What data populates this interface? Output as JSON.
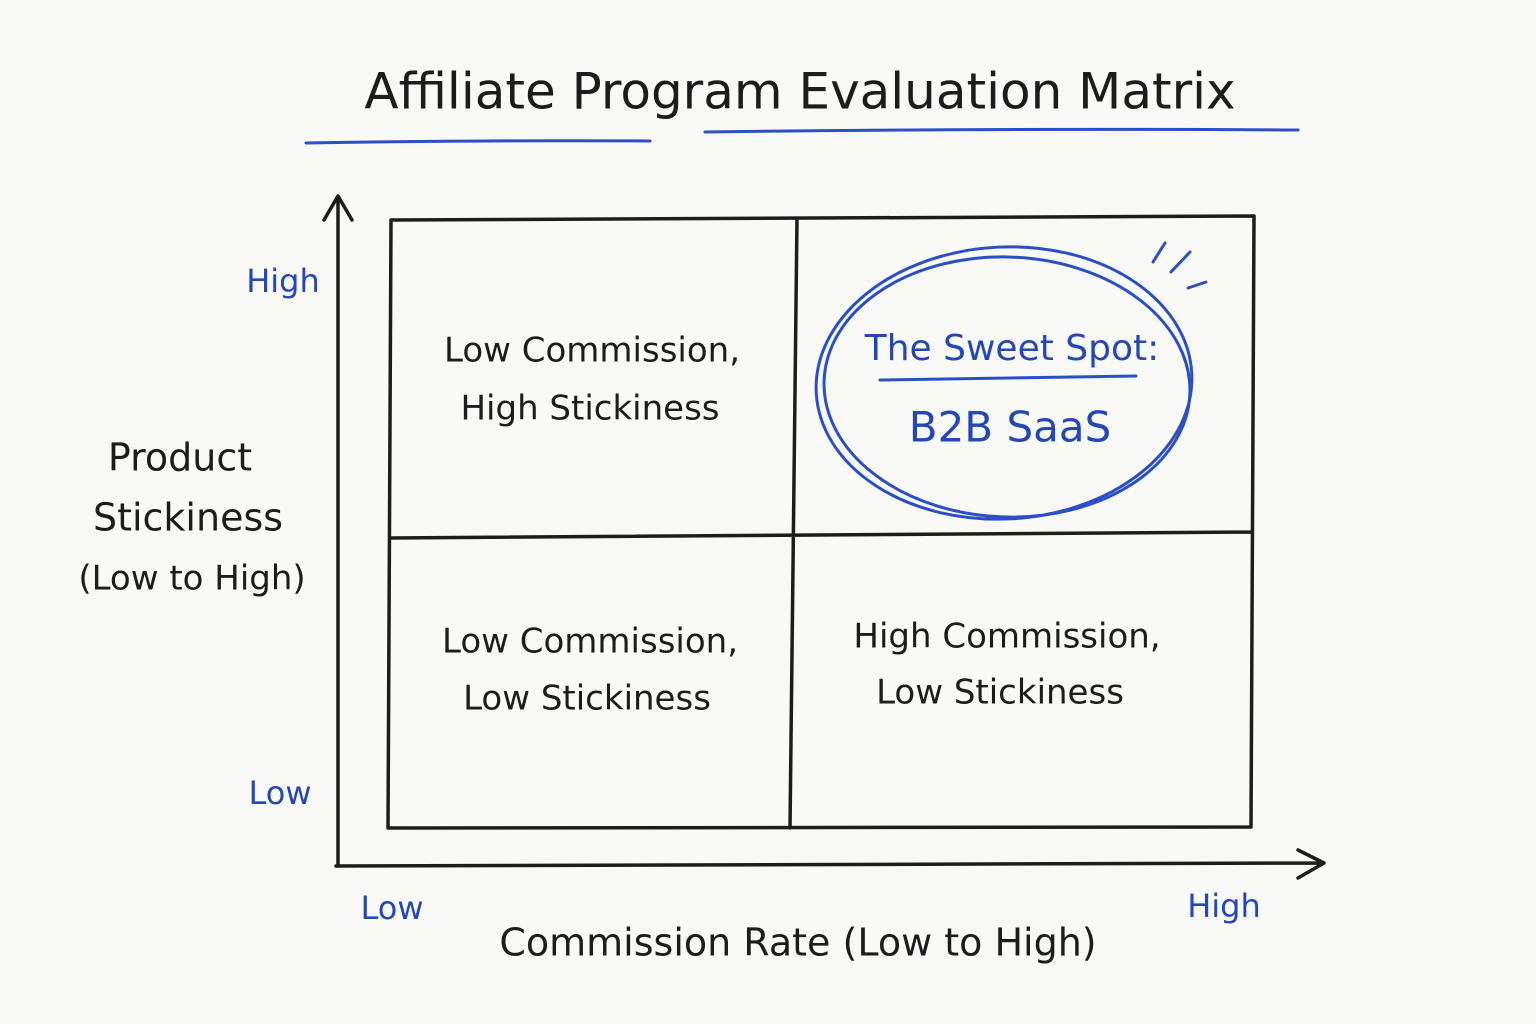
{
  "title": "Affiliate Program Evaluation Matrix",
  "y_axis": {
    "label_lines": [
      "Product",
      "Stickiness",
      "(Low to High)"
    ],
    "low": "Low",
    "high": "High"
  },
  "x_axis": {
    "label": "Commission Rate (Low to High)",
    "low": "Low",
    "high": "High"
  },
  "quadrants": {
    "top_left": {
      "lines": [
        "Low Commission,",
        "High Stickiness"
      ]
    },
    "top_right": {
      "heading": "The Sweet Spot:",
      "text": "B2B SaaS"
    },
    "bottom_left": {
      "lines": [
        "Low Commission,",
        "Low Stickiness"
      ]
    },
    "bottom_right": {
      "lines": [
        "High Commission,",
        "Low Stickiness"
      ]
    }
  }
}
